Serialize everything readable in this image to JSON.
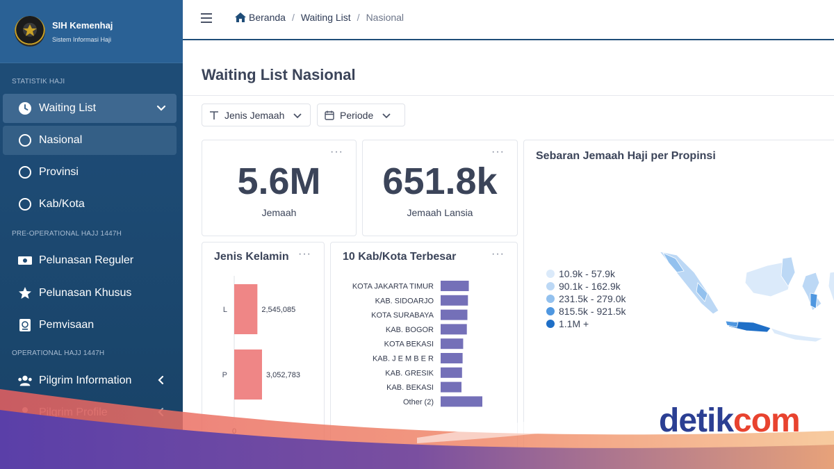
{
  "brand": {
    "title": "SIH Kemenhaj",
    "subtitle": "Sistem Informasi Haji"
  },
  "sidebar": {
    "sections": [
      "STATISTIK HAJI",
      "PRE-OPERATIONAL HAJJ 1447H",
      "OPERATIONAL HAJJ 1447H"
    ],
    "items": [
      {
        "label": "Waiting List",
        "icon": "clock-icon"
      },
      {
        "label": "Nasional",
        "icon": "circle-icon"
      },
      {
        "label": "Provinsi",
        "icon": "circle-icon"
      },
      {
        "label": "Kab/Kota",
        "icon": "circle-icon"
      },
      {
        "label": "Pelunasan Reguler",
        "icon": "money-icon"
      },
      {
        "label": "Pelunasan Khusus",
        "icon": "star-icon"
      },
      {
        "label": "Pemvisaan",
        "icon": "passport-icon"
      },
      {
        "label": "Pilgrim Information",
        "icon": "users-icon"
      },
      {
        "label": "Pilgrim Profile",
        "icon": "user-icon"
      }
    ]
  },
  "breadcrumb": {
    "home": "Beranda",
    "section": "Waiting List",
    "current": "Nasional"
  },
  "page": {
    "title": "Waiting List Nasional"
  },
  "filters": {
    "jenis": "Jenis Jemaah",
    "periode": "Periode"
  },
  "kpis": [
    {
      "value": "5.6M",
      "label": "Jemaah"
    },
    {
      "value": "651.8k",
      "label": "Jemaah Lansia"
    }
  ],
  "gender_card": {
    "title": "Jenis Kelamin",
    "axis_zero": "0"
  },
  "city_card": {
    "title": "10 Kab/Kota Terbesar"
  },
  "map_card": {
    "title": "Sebaran Jemaah Haji per Propinsi",
    "legend": [
      {
        "label": "10.9k - 57.9k",
        "color": "#dbeafa"
      },
      {
        "label": "90.1k - 162.9k",
        "color": "#bcd8f5"
      },
      {
        "label": "231.5k - 279.0k",
        "color": "#93c1ee"
      },
      {
        "label": "815.5k - 921.5k",
        "color": "#4f97e0"
      },
      {
        "label": "1.1M +",
        "color": "#1f6fc7"
      }
    ]
  },
  "chart_data": [
    {
      "type": "bar",
      "orientation": "horizontal",
      "title": "Jenis Kelamin",
      "categories": [
        "L",
        "P"
      ],
      "values": [
        2545085,
        3052783
      ],
      "data_labels": [
        "2,545,085",
        "3,052,783"
      ],
      "colors": [
        "#ef8686"
      ]
    },
    {
      "type": "bar",
      "orientation": "horizontal",
      "title": "10 Kab/Kota Terbesar",
      "categories": [
        "KOTA JAKARTA TIMUR",
        "KAB. SIDOARJO",
        "KOTA SURABAYA",
        "KAB. BOGOR",
        "KOTA BEKASI",
        "KAB. J E M B E R",
        "KAB. GRESIK",
        "KAB. BEKASI",
        "Other (2)"
      ],
      "values": [
        100,
        97,
        95,
        93,
        80,
        78,
        76,
        74,
        148
      ],
      "colors": [
        "#7470b8"
      ]
    }
  ],
  "watermark": {
    "part1": "detik",
    "part2": "com"
  }
}
